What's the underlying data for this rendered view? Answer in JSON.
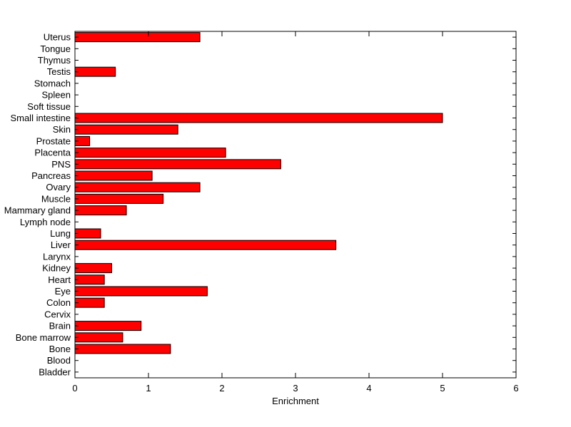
{
  "chart_data": {
    "type": "bar",
    "orientation": "horizontal",
    "title": "",
    "xlabel": "Enrichment",
    "ylabel": "",
    "xlim": [
      0,
      6
    ],
    "xticks": [
      0,
      1,
      2,
      3,
      4,
      5,
      6
    ],
    "grid": false,
    "legend": "none",
    "bar_color": "#ff0000",
    "bar_edge_color": "#000000",
    "axis_color": "#000000",
    "background_color": "#ffffff",
    "categories": [
      "Uterus",
      "Tongue",
      "Thymus",
      "Testis",
      "Stomach",
      "Spleen",
      "Soft tissue",
      "Small intestine",
      "Skin",
      "Prostate",
      "Placenta",
      "PNS",
      "Pancreas",
      "Ovary",
      "Muscle",
      "Mammary gland",
      "Lymph node",
      "Lung",
      "Liver",
      "Larynx",
      "Kidney",
      "Heart",
      "Eye",
      "Colon",
      "Cervix",
      "Brain",
      "Bone marrow",
      "Bone",
      "Blood",
      "Bladder"
    ],
    "values": [
      1.7,
      0,
      0,
      0.55,
      0,
      0,
      0,
      5.0,
      1.4,
      0.2,
      2.05,
      2.8,
      1.05,
      1.7,
      1.2,
      0.7,
      0,
      0.35,
      3.55,
      0,
      0.5,
      0.4,
      1.8,
      0.4,
      0,
      0.9,
      0.65,
      1.3,
      0,
      0
    ]
  }
}
